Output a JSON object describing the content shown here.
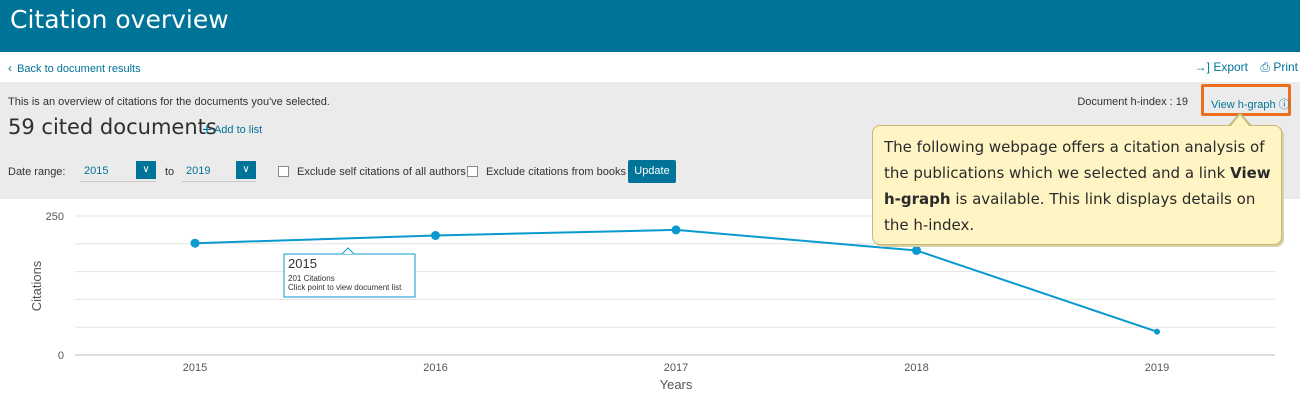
{
  "header": {
    "title": "Citation overview"
  },
  "nav": {
    "back_label": "Back to document results",
    "export_label": "Export",
    "print_label": "Print"
  },
  "summary": {
    "overview_text": "This is an overview of citations for the documents you've selected.",
    "cited_count": "59 cited documents",
    "add_to_list": "Add to list",
    "h_index_label": "Document h-index : 19",
    "view_h_graph": "View h-graph"
  },
  "filters": {
    "date_range_label": "Date range:",
    "from_year": "2015",
    "to_label": "to",
    "to_year": "2019",
    "exclude_self": "Exclude self citations of all authors",
    "exclude_books": "Exclude citations from books",
    "update_label": "Update"
  },
  "tooltip": {
    "year": "2015",
    "citations": "201 Citations",
    "hint": "Click point to view document list"
  },
  "callout": {
    "part1": "The following webpage offers a citation analysis of the publications which we selected and a link ",
    "bold": "View h-graph",
    "part2": " is available. This link displays details on the h-index."
  },
  "colors": {
    "accent": "#007398",
    "line": "#0a9ad0",
    "highlight": "#ee6e1f",
    "callout_bg": "#fff5c4"
  },
  "chart_data": {
    "type": "line",
    "x": [
      "2015",
      "2016",
      "2017",
      "2018",
      "2019"
    ],
    "series": [
      {
        "values": [
          201,
          215,
          225,
          188,
          42
        ]
      }
    ],
    "xlabel": "Years",
    "ylabel": "Citations",
    "ylim": [
      0,
      250
    ],
    "yticks": [
      "0",
      "250"
    ],
    "grid": true
  }
}
